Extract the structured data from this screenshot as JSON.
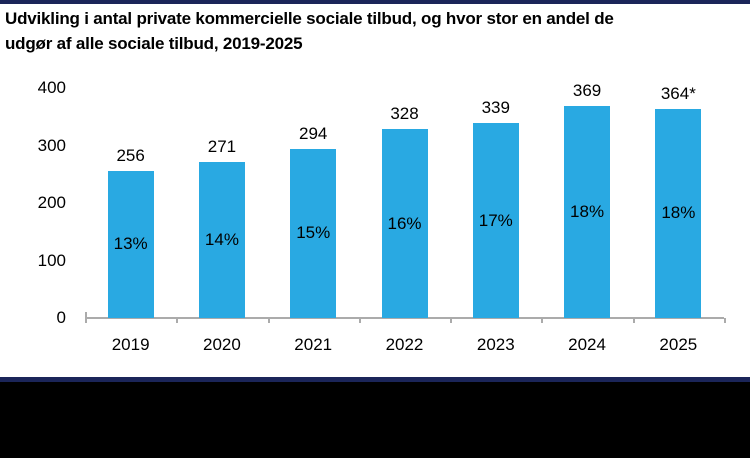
{
  "page": {
    "background_color": "#FFFFFF",
    "top_accent_color": "#1B2559",
    "footer_accent_color": "#1B2559",
    "footer_bar_color": "#000000"
  },
  "title": {
    "line1": "Udvikling i antal private kommercielle sociale tilbud, og hvor stor en andel de",
    "line2": "udgør af alle sociale tilbud, 2019-2025"
  },
  "chart_data": {
    "type": "bar",
    "title": "Udvikling i antal private kommercielle sociale tilbud, og hvor stor en andel de udgør af alle sociale tilbud, 2019-2025",
    "categories": [
      "2019",
      "2020",
      "2021",
      "2022",
      "2023",
      "2024",
      "2025"
    ],
    "values": [
      256,
      271,
      294,
      328,
      339,
      369,
      364
    ],
    "value_labels": [
      "256",
      "271",
      "294",
      "328",
      "339",
      "369",
      "364*"
    ],
    "percent_labels": [
      "13%",
      "14%",
      "15%",
      "16%",
      "17%",
      "18%",
      "18%"
    ],
    "xlabel": "",
    "ylabel": "",
    "ylim": [
      0,
      400
    ],
    "yticks": [
      0,
      100,
      200,
      300,
      400
    ],
    "grid": false,
    "legend": false,
    "bar_color": "#29A9E2",
    "axis_color": "#ABABAB",
    "text_color": "#000000"
  }
}
